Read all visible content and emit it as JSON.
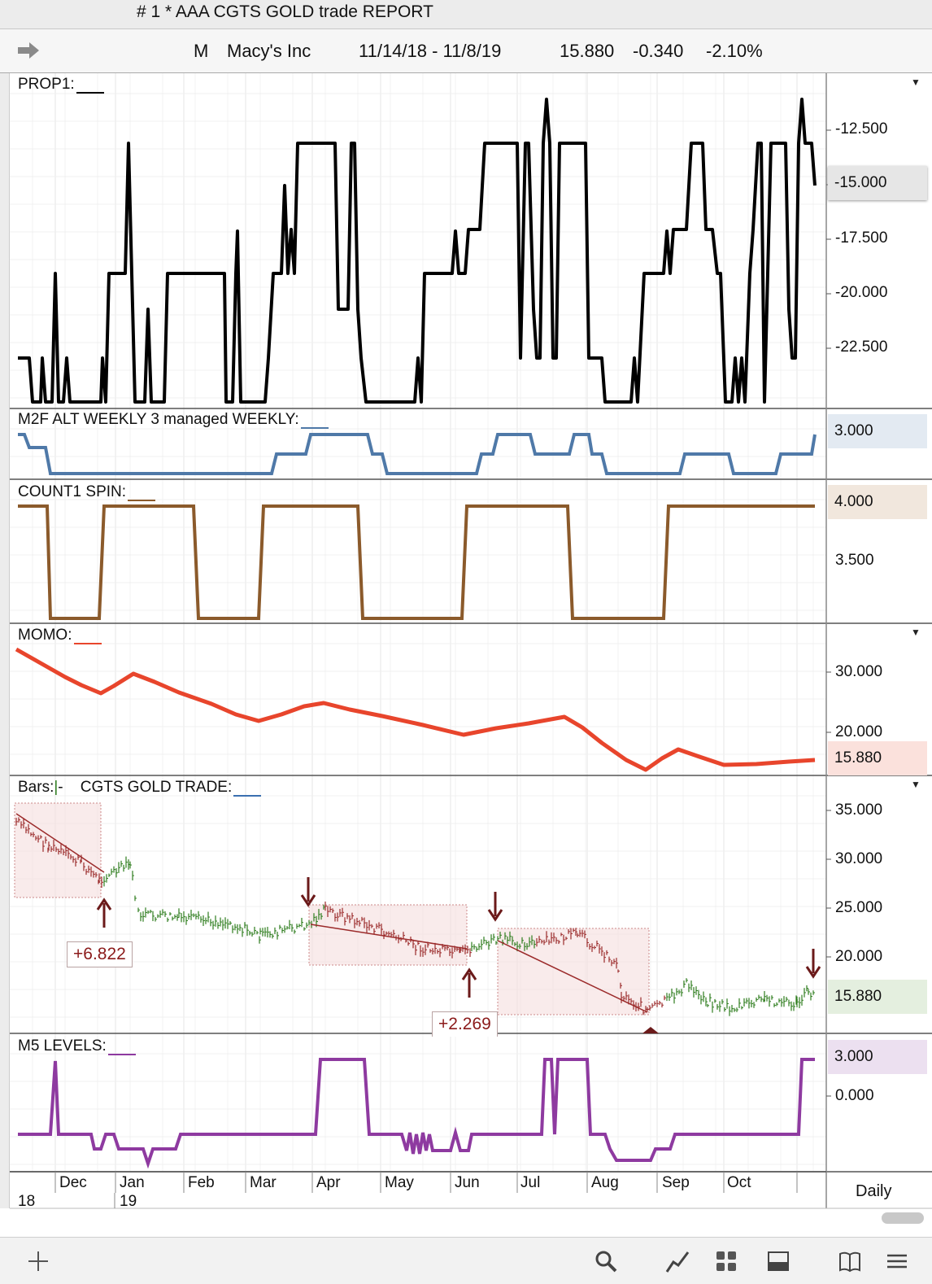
{
  "window": {
    "title": "# 1 *  AAA CGTS GOLD trade REPORT"
  },
  "info": {
    "symbol": "M",
    "name": "Macy's Inc",
    "range": "11/14/18 - 11/8/19",
    "last": "15.880",
    "change": "-0.340",
    "pct": "-2.10%"
  },
  "icons": {
    "back": "arrow-right-icon",
    "add": "plus-icon",
    "search": "magnifier-icon",
    "draw": "trendline-icon",
    "layout": "grid-icon",
    "panel": "panel-icon",
    "book": "book-icon",
    "menu": "hamburger-icon"
  },
  "colors": {
    "prop1": "#000000",
    "m2f": "#4f79a8",
    "count1": "#8b5a2b",
    "momo": "#e8452c",
    "bars_up": "#2e7d1e",
    "bars_down": "#9b2a2a",
    "m5": "#8e3aa0",
    "arrow": "#6b1a1a"
  },
  "panels": {
    "prop1": {
      "label": "PROP1:",
      "yticks": [
        "-12.500",
        "-15.000",
        "-17.500",
        "-20.000",
        "-22.500"
      ],
      "badge": ""
    },
    "m2f": {
      "label": "M2F ALT WEEKLY 3 managed WEEKLY:",
      "badge": "3.000"
    },
    "count1": {
      "label": "COUNT1 SPIN:",
      "badge": "4.000",
      "yticks": [
        "3.500"
      ]
    },
    "momo": {
      "label": "MOMO:",
      "yticks": [
        "30.000",
        "20.000"
      ],
      "badge": "15.880"
    },
    "bars": {
      "label": "Bars:",
      "label_suffix": "-",
      "label2": "CGTS  GOLD TRADE:",
      "yticks": [
        "35.000",
        "30.000",
        "25.000",
        "20.000"
      ],
      "badge": "15.880"
    },
    "m5": {
      "label": "M5 LEVELS:",
      "badge": "3.000",
      "yticks": [
        "0.000"
      ]
    }
  },
  "annotations": {
    "gain1": "+6.822",
    "gain2": "+2.269"
  },
  "xaxis": {
    "months": [
      "Dec",
      "Jan",
      "Feb",
      "Mar",
      "Apr",
      "May",
      "Jun",
      "Jul",
      "Aug",
      "Sep",
      "Oct"
    ],
    "years": [
      "18",
      "19"
    ],
    "period": "Daily"
  }
}
